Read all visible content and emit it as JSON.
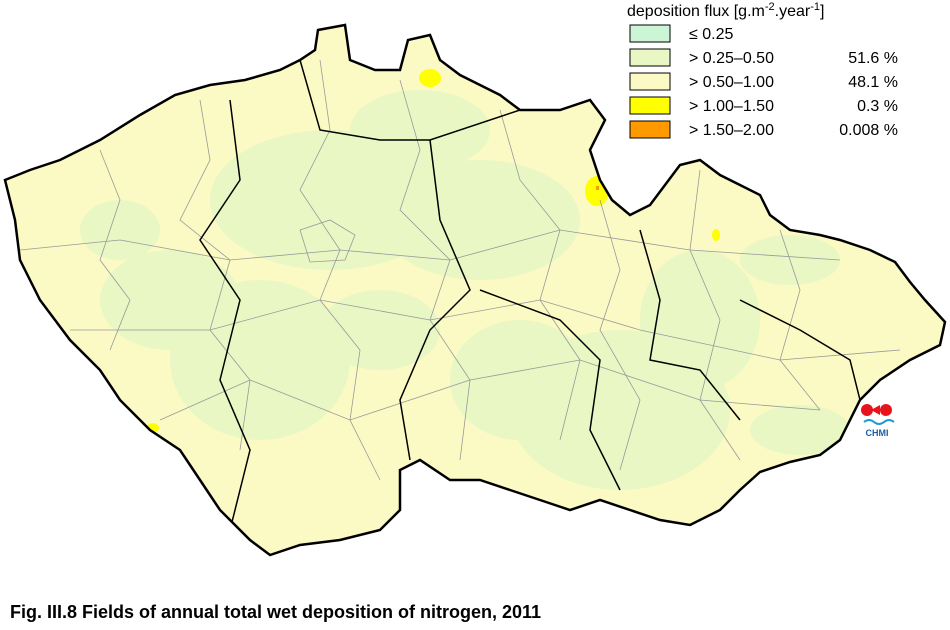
{
  "legend": {
    "title": {
      "main": "deposition flux [g.m",
      "exp1": "-2",
      "mid": ".year",
      "exp2": "-1",
      "end": "]"
    },
    "items": [
      {
        "label": "≤ 0.25",
        "color": "#ccf5d6"
      },
      {
        "label": "> 0.25–0.50",
        "share": "51.6 %",
        "color": "#e8f7c4"
      },
      {
        "label": "> 0.50–1.00",
        "share": "48.1 %",
        "color": "#fbfac4"
      },
      {
        "label": "> 1.00–1.50",
        "share": "0.3 %",
        "color": "#ffff00"
      },
      {
        "label": "> 1.50–2.00",
        "share": "0.008 %",
        "color": "#ff9900"
      }
    ]
  },
  "logo": {
    "text": "CHMI"
  },
  "caption": "Fig. III.8  Fields of annual total wet deposition of nitrogen, 2011"
}
